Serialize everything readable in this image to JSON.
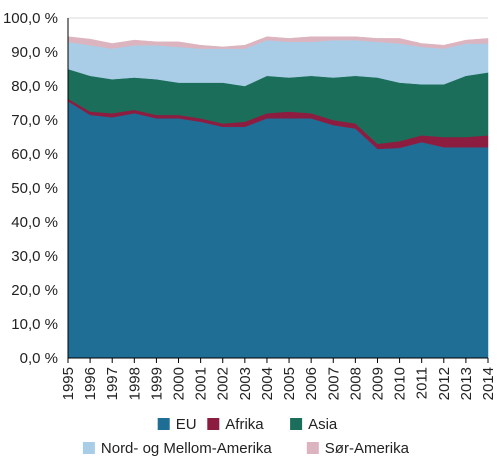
{
  "chart_data": {
    "type": "area",
    "stacked": true,
    "x": [
      "1995",
      "1996",
      "1997",
      "1998",
      "1999",
      "2000",
      "2001",
      "2002",
      "2003",
      "2004",
      "2005",
      "2006",
      "2007",
      "2008",
      "2009",
      "2010",
      "2011",
      "2012",
      "2013",
      "2014"
    ],
    "ylim": [
      0,
      100
    ],
    "yticks": [
      "0,0 %",
      "10,0 %",
      "20,0 %",
      "30,0 %",
      "40,0 %",
      "50,0 %",
      "60,0 %",
      "70,0 %",
      "80,0 %",
      "90,0 %",
      "100,0 %"
    ],
    "grid": true,
    "legend_position": "bottom",
    "series": [
      {
        "name": "EU",
        "color": "#1f6e96",
        "values": [
          75.5,
          71.5,
          70.8,
          72.0,
          70.5,
          70.5,
          69.5,
          68.0,
          68.0,
          70.5,
          70.5,
          70.5,
          68.5,
          67.5,
          61.5,
          61.8,
          63.5,
          62.0,
          62.0,
          62.0
        ]
      },
      {
        "name": "Afrika",
        "color": "#8c1d40",
        "values": [
          0.8,
          1.0,
          1.2,
          1.0,
          1.0,
          1.0,
          1.0,
          1.0,
          1.5,
          1.5,
          2.0,
          1.5,
          1.5,
          1.5,
          1.5,
          2.0,
          2.0,
          3.0,
          3.0,
          3.5
        ]
      },
      {
        "name": "Asia",
        "color": "#1b6e5a",
        "values": [
          8.7,
          10.5,
          10.0,
          9.5,
          10.5,
          9.5,
          10.5,
          12.0,
          10.5,
          11.0,
          10.0,
          11.0,
          12.5,
          14.0,
          19.5,
          17.2,
          15.0,
          15.5,
          18.0,
          18.5
        ]
      },
      {
        "name": "Nord- og Mellom-Amerika",
        "color": "#a9cde6",
        "values": [
          8.0,
          9.0,
          9.0,
          9.5,
          10.0,
          10.5,
          10.0,
          10.0,
          11.0,
          10.5,
          10.5,
          10.0,
          11.0,
          10.5,
          10.5,
          11.5,
          11.0,
          10.5,
          9.5,
          8.5
        ]
      },
      {
        "name": "Sør-Amerika",
        "color": "#dcb4bf",
        "values": [
          1.5,
          1.8,
          1.5,
          1.5,
          1.0,
          1.5,
          1.0,
          0.5,
          1.0,
          1.0,
          1.0,
          1.5,
          1.0,
          1.0,
          1.0,
          1.5,
          1.0,
          1.0,
          1.0,
          1.5
        ]
      }
    ]
  }
}
